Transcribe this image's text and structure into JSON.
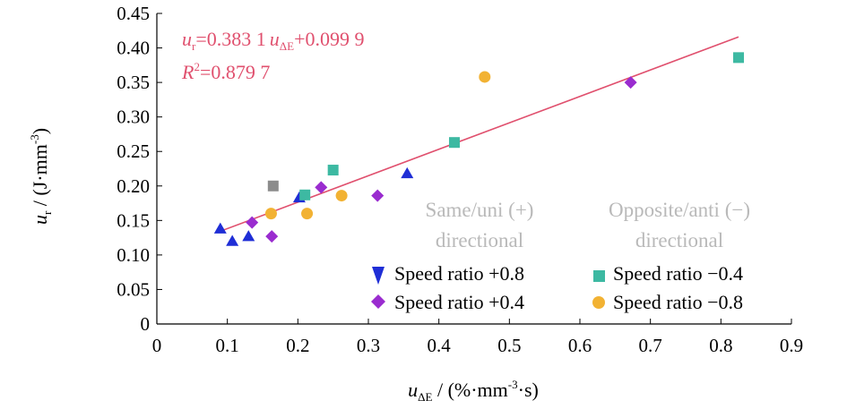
{
  "chart_data": {
    "type": "scatter",
    "xlim": [
      0,
      0.9
    ],
    "ylim": [
      0,
      0.45
    ],
    "xticks": [
      "0",
      "0.1",
      "0.2",
      "0.3",
      "0.4",
      "0.5",
      "0.6",
      "0.7",
      "0.8",
      "0.9"
    ],
    "yticks": [
      "0",
      "0.05",
      "0.10",
      "0.15",
      "0.20",
      "0.25",
      "0.30",
      "0.35",
      "0.40",
      "0.45"
    ],
    "xlabel": {
      "main": "u",
      "sub": "ΔE",
      "rest": " / (%·mm",
      "sup": "-3",
      "tail": "·s)"
    },
    "ylabel": {
      "main": "u",
      "sub": "r",
      "rest": " / (J·mm",
      "sup": "-3",
      "tail": ")"
    },
    "grid": false,
    "equation": {
      "line1_a": "u",
      "line1_a_sub": "r",
      "line1_b": "=0.383 1",
      "line1_c": "u",
      "line1_c_sub": "ΔE",
      "line1_d": "+0.099 9",
      "line2_a": "R",
      "line2_a_sup": "2",
      "line2_b": "=0.879 7",
      "color": "#e0506e"
    },
    "fit": {
      "slope": 0.3831,
      "intercept": 0.0999,
      "x_range": [
        0.09,
        0.825
      ],
      "color": "#e0506e"
    },
    "regions": [
      {
        "line1": "Same/uni (+)",
        "line2": "directional"
      },
      {
        "line1": "Opposite/anti (−)",
        "line2": "directional"
      }
    ],
    "series": [
      {
        "name": "Speed ratio +0.8",
        "marker": "triangle",
        "color": "#1f2ed6",
        "points": [
          [
            0.09,
            0.138
          ],
          [
            0.107,
            0.12
          ],
          [
            0.13,
            0.127
          ],
          [
            0.202,
            0.183
          ],
          [
            0.355,
            0.218
          ]
        ]
      },
      {
        "name": "Speed ratio +0.4",
        "marker": "diamond",
        "color": "#9a2ccf",
        "points": [
          [
            0.135,
            0.147
          ],
          [
            0.163,
            0.127
          ],
          [
            0.233,
            0.198
          ],
          [
            0.313,
            0.186
          ],
          [
            0.672,
            0.35
          ]
        ]
      },
      {
        "name": "Speed ratio −0.4",
        "marker": "square",
        "color": "#3db9a2",
        "points": [
          [
            0.21,
            0.187
          ],
          [
            0.25,
            0.223
          ],
          [
            0.422,
            0.263
          ],
          [
            0.825,
            0.386
          ]
        ]
      },
      {
        "name": "Speed ratio −0.8",
        "marker": "circle",
        "color": "#f2b233",
        "points": [
          [
            0.162,
            0.16
          ],
          [
            0.213,
            0.16
          ],
          [
            0.262,
            0.186
          ],
          [
            0.465,
            0.358
          ]
        ]
      },
      {
        "name": "",
        "marker": "square",
        "color": "#8c8c8c",
        "points": [
          [
            0.165,
            0.2
          ]
        ]
      }
    ],
    "legend": {
      "placement": "bottom-right"
    }
  }
}
